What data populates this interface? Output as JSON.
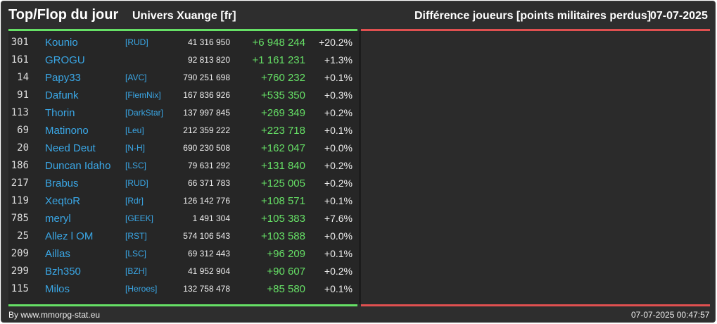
{
  "header": {
    "title": "Top/Flop du jour",
    "universe": "Univers Xuange [fr]",
    "subtitle": "Différence joueurs [points militaires perdus]",
    "date": "07-07-2025"
  },
  "rows": [
    {
      "rank": "301",
      "name": "Kounio",
      "alliance": "[RUD]",
      "points": "41 316 950",
      "diff": "+6 948 244",
      "pct": "+20.2%"
    },
    {
      "rank": "161",
      "name": "GROGU",
      "alliance": "",
      "points": "92 813 820",
      "diff": "+1 161 231",
      "pct": "+1.3%"
    },
    {
      "rank": "14",
      "name": "Papy33",
      "alliance": "[AVC]",
      "points": "790 251 698",
      "diff": "+760 232",
      "pct": "+0.1%"
    },
    {
      "rank": "91",
      "name": "Dafunk",
      "alliance": "[FlemNix]",
      "points": "167 836 926",
      "diff": "+535 350",
      "pct": "+0.3%"
    },
    {
      "rank": "113",
      "name": "Thorin",
      "alliance": "[DarkStar]",
      "points": "137 997 845",
      "diff": "+269 349",
      "pct": "+0.2%"
    },
    {
      "rank": "69",
      "name": "Matinono",
      "alliance": "[Leu]",
      "points": "212 359 222",
      "diff": "+223 718",
      "pct": "+0.1%"
    },
    {
      "rank": "20",
      "name": "Need Deut",
      "alliance": "[N-H]",
      "points": "690 230 508",
      "diff": "+162 047",
      "pct": "+0.0%"
    },
    {
      "rank": "186",
      "name": "Duncan Idaho",
      "alliance": "[LSC]",
      "points": "79 631 292",
      "diff": "+131 840",
      "pct": "+0.2%"
    },
    {
      "rank": "217",
      "name": "Brabus",
      "alliance": "[RUD]",
      "points": "66 371 783",
      "diff": "+125 005",
      "pct": "+0.2%"
    },
    {
      "rank": "119",
      "name": "XeqtoR",
      "alliance": "[Rdr]",
      "points": "126 142 776",
      "diff": "+108 571",
      "pct": "+0.1%"
    },
    {
      "rank": "785",
      "name": "meryl",
      "alliance": "[GEEK]",
      "points": "1 491 304",
      "diff": "+105 383",
      "pct": "+7.6%"
    },
    {
      "rank": "25",
      "name": "Allez l OM",
      "alliance": "[RST]",
      "points": "574 106 543",
      "diff": "+103 588",
      "pct": "+0.0%"
    },
    {
      "rank": "209",
      "name": "Aillas",
      "alliance": "[LSC]",
      "points": "69 312 443",
      "diff": "+96 209",
      "pct": "+0.1%"
    },
    {
      "rank": "299",
      "name": "Bzh350",
      "alliance": "[BZH]",
      "points": "41 952 904",
      "diff": "+90 607",
      "pct": "+0.2%"
    },
    {
      "rank": "115",
      "name": "Milos",
      "alliance": "[Heroes]",
      "points": "132 758 478",
      "diff": "+85 580",
      "pct": "+0.1%"
    }
  ],
  "footer": {
    "source": "By www.mmorpg-stat.eu",
    "timestamp": "07-07-2025 00:47:57"
  },
  "colors": {
    "background": "#2e2e2e",
    "top_accent": "#66e066",
    "flop_accent": "#e05050",
    "link": "#3aa7e6",
    "text": "#eeeeee"
  }
}
